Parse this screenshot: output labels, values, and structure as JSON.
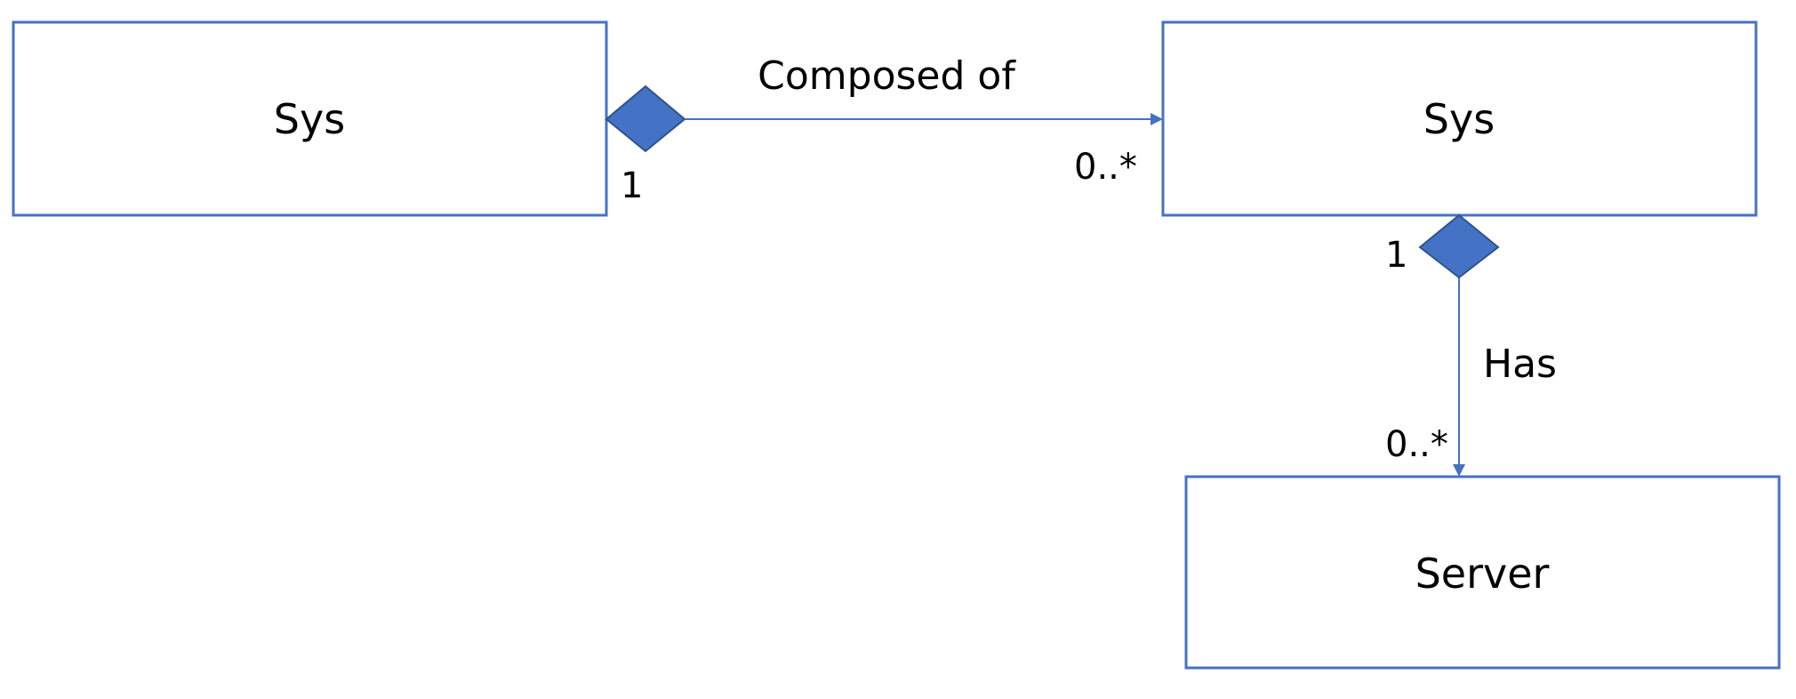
{
  "diagram": {
    "type": "uml-class-composition",
    "colors": {
      "line": "#4472C4",
      "diamond_fill": "#4472C4",
      "diamond_stroke": "#2F528F",
      "box_fill": "#FFFFFF",
      "text": "#000000"
    },
    "boxes": {
      "sys_left": {
        "label": "Sys"
      },
      "sys_right": {
        "label": "Sys"
      },
      "server": {
        "label": "Server"
      }
    },
    "edges": {
      "composed_of": {
        "label": "Composed of",
        "from": "sys_left",
        "to": "sys_right",
        "source_multiplicity": "1",
        "target_multiplicity": "0..*",
        "source_end": "filled-diamond",
        "target_end": "arrow"
      },
      "has": {
        "label": "Has",
        "from": "sys_right",
        "to": "server",
        "source_multiplicity": "1",
        "target_multiplicity": "0..*",
        "source_end": "filled-diamond",
        "target_end": "arrow"
      }
    }
  }
}
